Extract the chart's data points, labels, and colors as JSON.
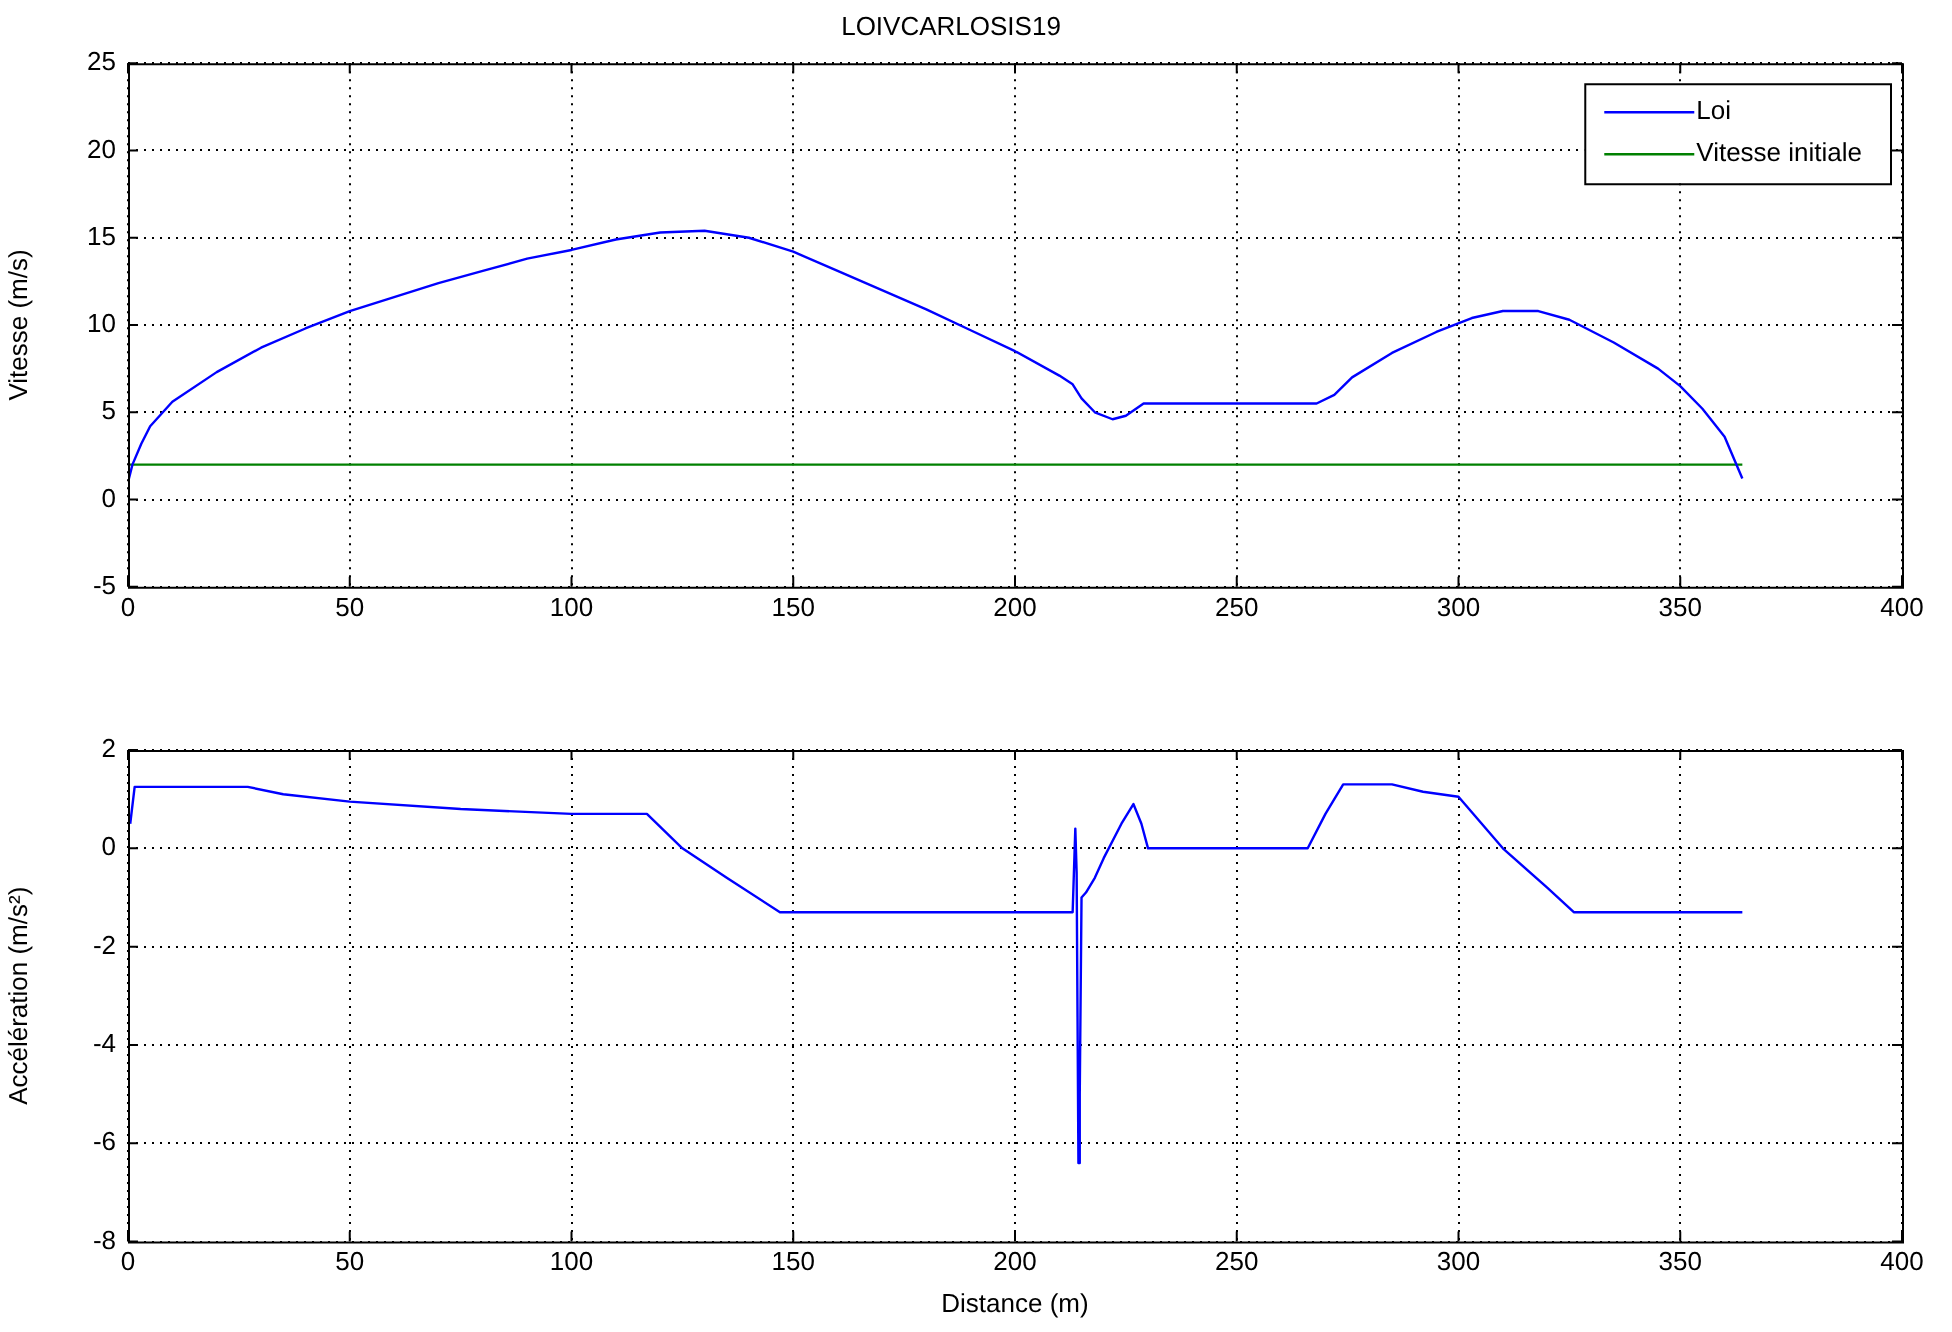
{
  "chart_data": [
    {
      "type": "line",
      "title": "LOIVCARLOSIS19",
      "ylabel": "Vitesse (m/s)",
      "xlim": [
        0,
        400
      ],
      "xticks": [
        0,
        50,
        100,
        150,
        200,
        250,
        300,
        350,
        400
      ],
      "ylim": [
        -5,
        25
      ],
      "yticks": [
        -5,
        0,
        5,
        10,
        15,
        20,
        25
      ],
      "grid": true,
      "legend": "top right",
      "series": [
        {
          "name": "Loi",
          "color": "#0000ff",
          "x": [
            0,
            1,
            3,
            5,
            10,
            20,
            30,
            40,
            50,
            60,
            70,
            80,
            90,
            100,
            110,
            120,
            130,
            140,
            150,
            160,
            170,
            180,
            190,
            200,
            210,
            213,
            215,
            218,
            222,
            225,
            229,
            240,
            250,
            260,
            268,
            272,
            276,
            285,
            295,
            303,
            310,
            318,
            325,
            335,
            345,
            350,
            355,
            360,
            364
          ],
          "values": [
            1,
            2,
            3.2,
            4.2,
            5.6,
            7.3,
            8.7,
            9.8,
            10.8,
            11.6,
            12.4,
            13.1,
            13.8,
            14.3,
            14.9,
            15.3,
            15.4,
            15,
            14.2,
            13.1,
            12,
            10.9,
            9.7,
            8.5,
            7.1,
            6.6,
            5.8,
            5,
            4.6,
            4.8,
            5.5,
            5.5,
            5.5,
            5.5,
            5.5,
            6,
            7,
            8.4,
            9.6,
            10.4,
            10.8,
            10.8,
            10.3,
            9,
            7.5,
            6.5,
            5.2,
            3.6,
            1.2
          ]
        },
        {
          "name": "Vitesse initiale",
          "color": "#008000",
          "x": [
            0,
            364
          ],
          "values": [
            2,
            2
          ]
        }
      ]
    },
    {
      "type": "line",
      "xlabel": "Distance (m)",
      "ylabel": "Accélération (m/s²)",
      "xlim": [
        0,
        400
      ],
      "xticks": [
        0,
        50,
        100,
        150,
        200,
        250,
        300,
        350,
        400
      ],
      "ylim": [
        -8,
        2
      ],
      "yticks": [
        -8,
        -6,
        -4,
        -2,
        0,
        2
      ],
      "grid": true,
      "series": [
        {
          "color": "#0000ff",
          "x": [
            0.5,
            1.5,
            27,
            35,
            50,
            75,
            100,
            117,
            125,
            135,
            147,
            200,
            213,
            213.6,
            213.9,
            214.3,
            214.6,
            215,
            216,
            218,
            220,
            224,
            226.7,
            228.5,
            230,
            250,
            266,
            270,
            274,
            285,
            292,
            300,
            310,
            320,
            326,
            340,
            364
          ],
          "values": [
            0.5,
            1.25,
            1.25,
            1.1,
            0.95,
            0.8,
            0.7,
            0.7,
            0,
            -0.6,
            -1.3,
            -1.3,
            -1.3,
            0.4,
            -0.5,
            -6.4,
            -5,
            -1,
            -0.9,
            -0.6,
            -0.2,
            0.5,
            0.9,
            0.5,
            0,
            0,
            0,
            0.7,
            1.3,
            1.3,
            1.15,
            1.05,
            0,
            -0.8,
            -1.3,
            -1.3,
            -1.3
          ]
        }
      ]
    }
  ]
}
